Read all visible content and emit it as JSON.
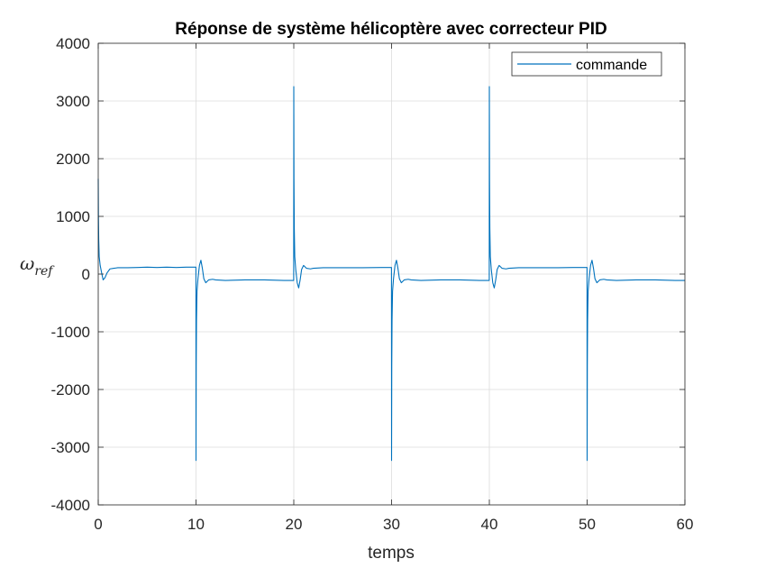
{
  "chart_data": {
    "type": "line",
    "title": "Réponse de système hélicoptère avec correcteur PID",
    "xlabel": "temps",
    "ylabel": {
      "base": "ω",
      "sub": "ref"
    },
    "xlim": [
      0,
      60
    ],
    "ylim": [
      -4000,
      4000
    ],
    "xticks": [
      0,
      10,
      20,
      30,
      40,
      50,
      60
    ],
    "yticks": [
      -4000,
      -3000,
      -2000,
      -1000,
      0,
      1000,
      2000,
      3000,
      4000
    ],
    "grid": true,
    "legend": {
      "position": "top-right"
    },
    "series": [
      {
        "name": "commande",
        "color": "#0072BD",
        "x": [
          0,
          0.02,
          0.05,
          0.1,
          0.2,
          0.35,
          0.5,
          0.7,
          0.9,
          1.2,
          1.6,
          2.0,
          3.0,
          4.0,
          5.0,
          6.0,
          7.0,
          8.0,
          9.0,
          9.99,
          10.0,
          10.02,
          10.05,
          10.1,
          10.2,
          10.35,
          10.5,
          10.65,
          10.8,
          11.0,
          11.3,
          11.7,
          12.0,
          13.0,
          15.0,
          17.0,
          19.0,
          19.99,
          20.0,
          20.02,
          20.05,
          20.1,
          20.2,
          20.35,
          20.5,
          20.65,
          20.8,
          21.0,
          21.3,
          21.7,
          22.0,
          23.0,
          25.0,
          27.0,
          29.0,
          29.99,
          30.0,
          30.02,
          30.05,
          30.1,
          30.2,
          30.35,
          30.5,
          30.65,
          30.8,
          31.0,
          31.3,
          31.7,
          32.0,
          33.0,
          35.0,
          37.0,
          39.0,
          39.99,
          40.0,
          40.02,
          40.05,
          40.1,
          40.2,
          40.35,
          40.5,
          40.65,
          40.8,
          41.0,
          41.3,
          41.7,
          42.0,
          43.0,
          45.0,
          47.0,
          49.0,
          49.99,
          50.0,
          50.02,
          50.05,
          50.1,
          50.2,
          50.35,
          50.5,
          50.65,
          50.8,
          51.0,
          51.3,
          51.7,
          52.0,
          53.0,
          55.0,
          57.0,
          59.0,
          60.0
        ],
        "y": [
          1650,
          1000,
          600,
          300,
          150,
          20,
          -100,
          -60,
          20,
          90,
          100,
          110,
          110,
          115,
          120,
          115,
          120,
          115,
          120,
          120,
          -3230,
          -1600,
          -800,
          -300,
          -80,
          150,
          240,
          100,
          -80,
          -150,
          -100,
          -90,
          -100,
          -110,
          -100,
          -100,
          -110,
          -110,
          3250,
          1650,
          800,
          300,
          80,
          -150,
          -240,
          -100,
          80,
          150,
          100,
          90,
          100,
          110,
          110,
          110,
          115,
          115,
          -3230,
          -1600,
          -800,
          -300,
          -80,
          150,
          240,
          100,
          -80,
          -150,
          -100,
          -90,
          -100,
          -110,
          -100,
          -100,
          -110,
          -110,
          3250,
          1650,
          800,
          300,
          80,
          -150,
          -240,
          -100,
          80,
          150,
          100,
          90,
          100,
          110,
          110,
          110,
          115,
          115,
          -3230,
          -1600,
          -800,
          -300,
          -80,
          150,
          240,
          100,
          -80,
          -150,
          -100,
          -90,
          -100,
          -110,
          -100,
          -100,
          -110,
          -110
        ]
      }
    ]
  }
}
